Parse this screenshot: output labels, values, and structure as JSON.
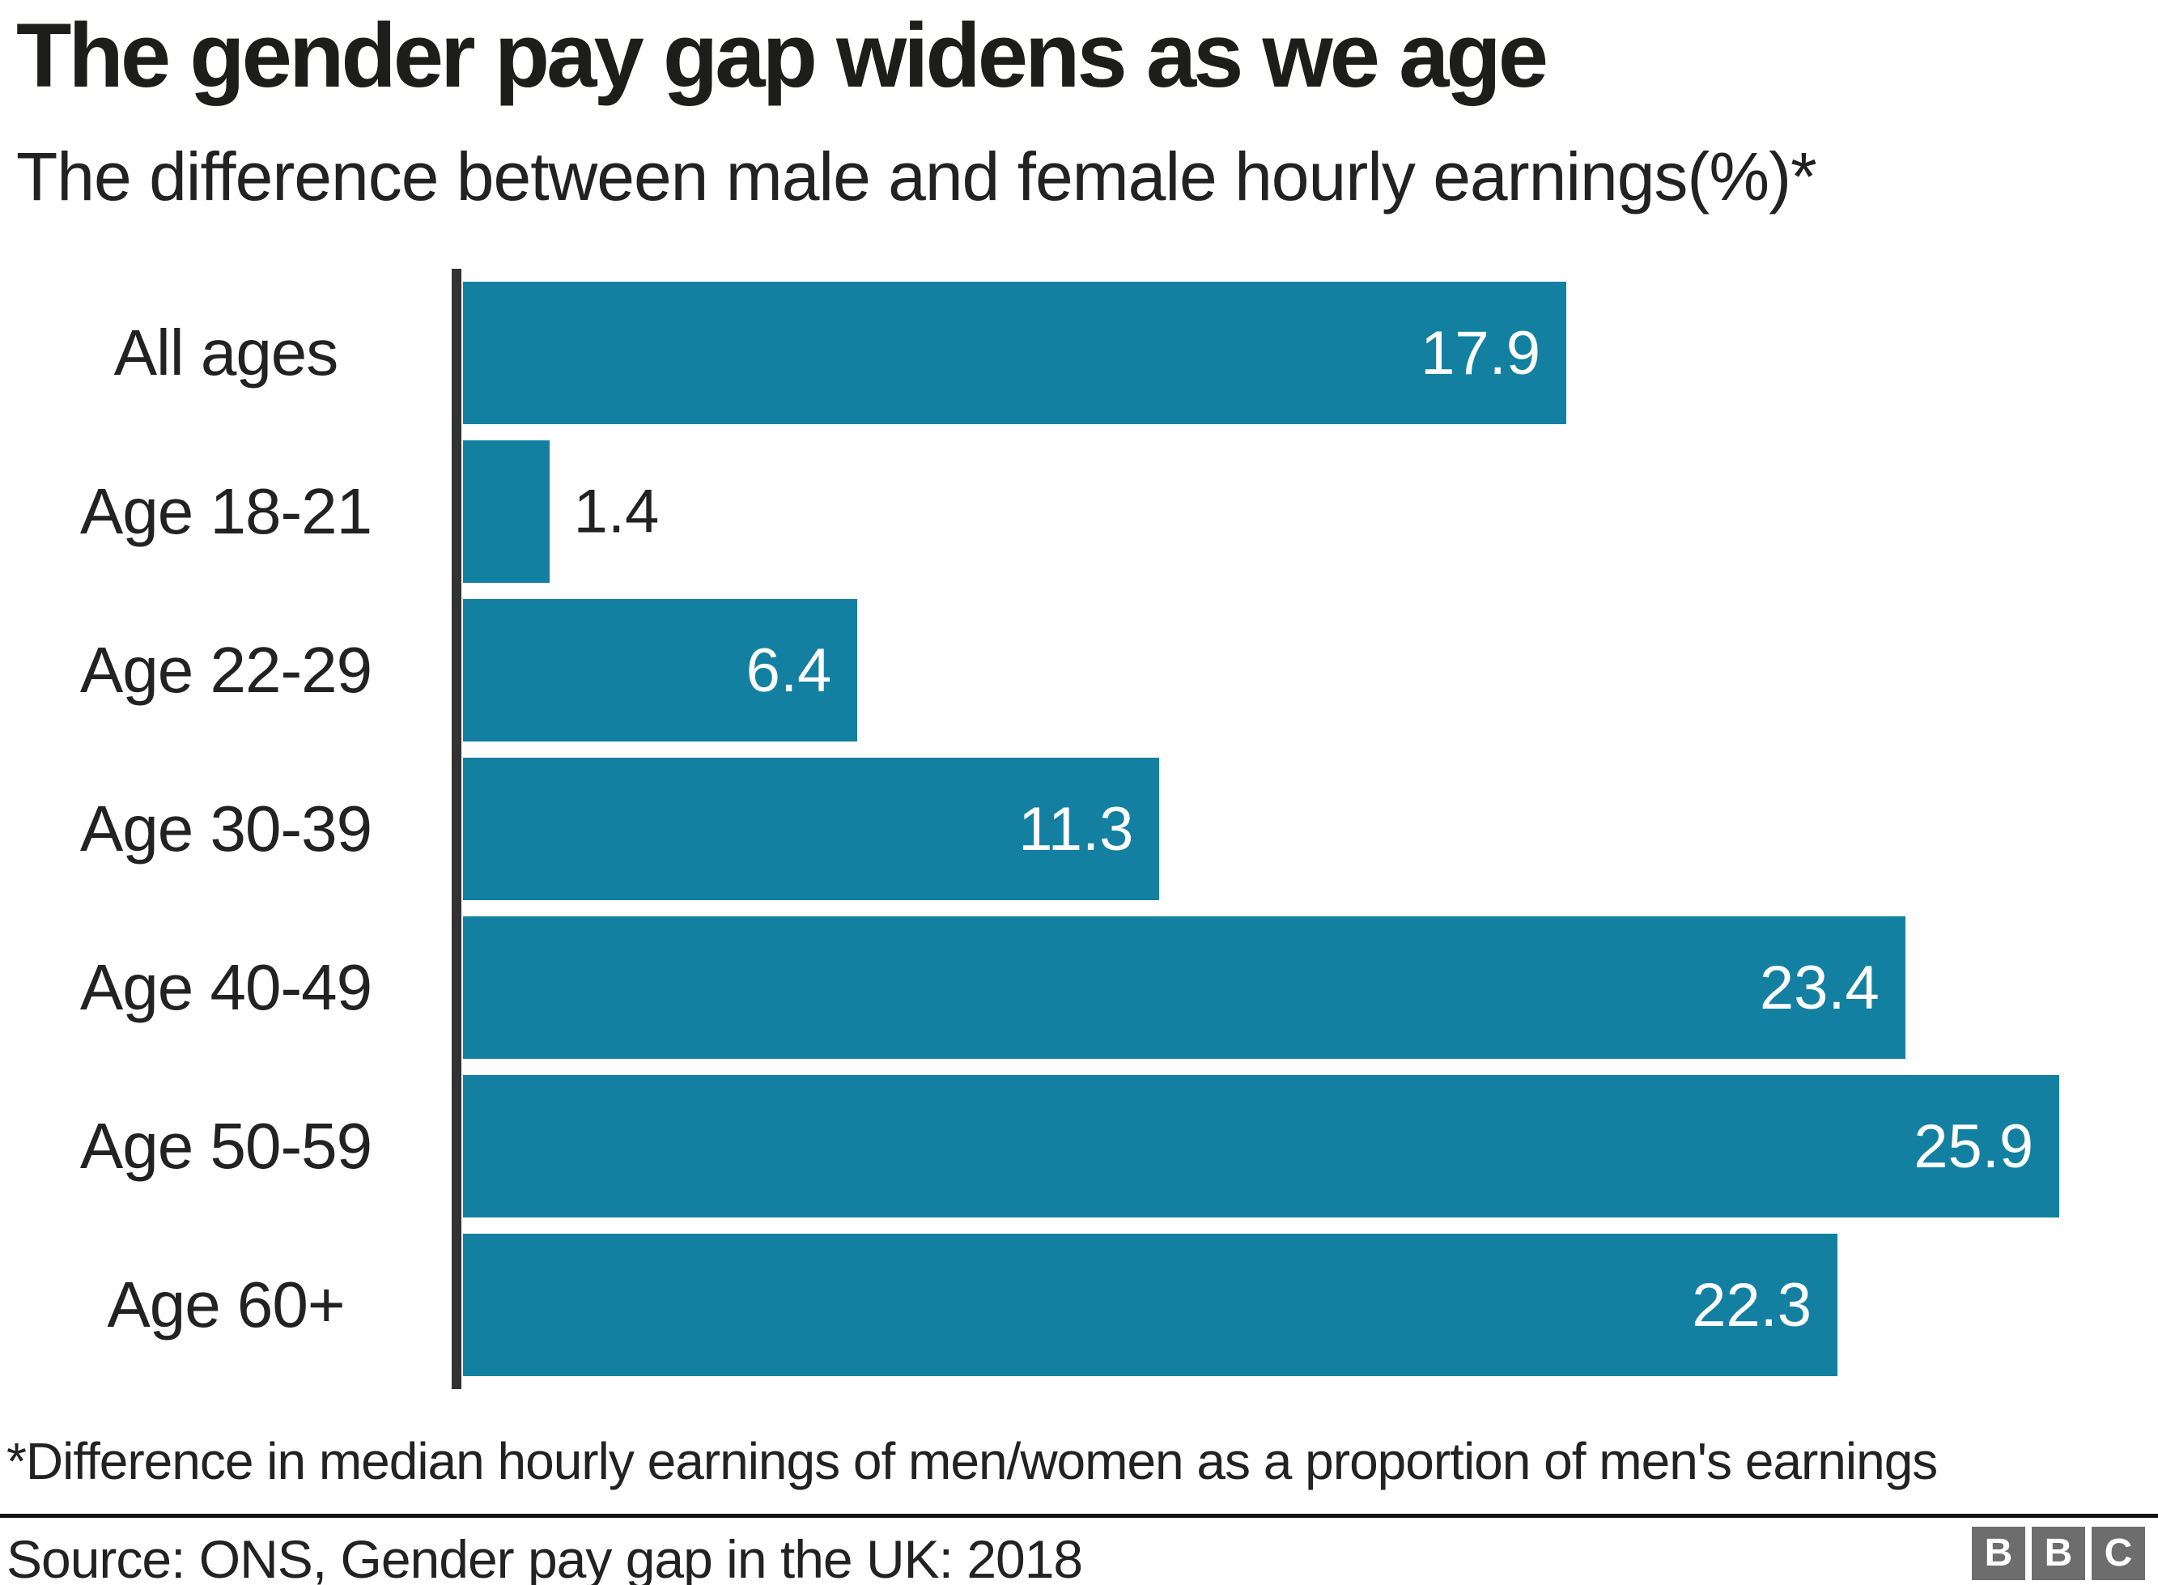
{
  "chart_data": {
    "type": "bar",
    "orientation": "horizontal",
    "title": "The gender pay gap widens as we age",
    "subtitle": "The difference between male and female hourly earnings(%)*",
    "categories": [
      "All ages",
      "Age 18-21",
      "Age 22-29",
      "Age 30-39",
      "Age 40-49",
      "Age 50-59",
      "Age 60+"
    ],
    "values": [
      17.9,
      1.4,
      6.4,
      11.3,
      23.4,
      25.9,
      22.3
    ],
    "xlabel": "",
    "ylabel": "",
    "xlim": [
      0,
      27.5
    ],
    "grid": false,
    "legend": false,
    "value_labels": [
      "17.9",
      "1.4",
      "6.4",
      "11.3",
      "23.4",
      "25.9",
      "22.3"
    ],
    "inside_label_min_value": 4
  },
  "colors": {
    "bar": "#1380A1",
    "axis": "#333333",
    "value_inside": "#ffffff",
    "value_outside": "#222222",
    "divider": "#111111",
    "logo_bg": "#6d6d6d",
    "logo_text": "#ffffff"
  },
  "footer": {
    "footnote": "*Difference in median hourly earnings of men/women as a proportion of men's earnings",
    "source": "Source: ONS, Gender pay gap in the UK: 2018",
    "logo_letters": [
      "B",
      "B",
      "C"
    ]
  }
}
